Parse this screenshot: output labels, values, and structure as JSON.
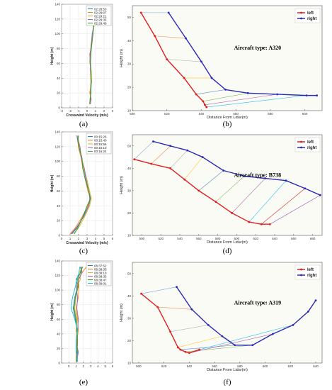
{
  "chart_data": [
    {
      "id": "a",
      "type": "line",
      "orientation": "vertical-profile",
      "panel_label": "(a)",
      "xlabel": "Crosswind Velocity (m/s)",
      "ylabel": "Height (m)",
      "xlim": [
        -3,
        3
      ],
      "ylim": [
        0,
        140
      ],
      "xticks": [
        -3,
        -2,
        -1,
        0,
        1,
        2,
        3
      ],
      "yticks": [
        0,
        20,
        40,
        60,
        80,
        100,
        120,
        140
      ],
      "grid": true,
      "legend_position": "top-right",
      "series": [
        {
          "name": "02:28:53",
          "color": "#1f77b4",
          "x": [
            0.35,
            0.4,
            0.45,
            0.5,
            0.45,
            0.35,
            0.35,
            0.5,
            0.65,
            0.8,
            0.9,
            0.85,
            0.8
          ],
          "y": [
            5,
            12,
            20,
            35,
            50,
            62,
            72,
            85,
            100,
            112,
            122,
            130,
            135
          ]
        },
        {
          "name": "02:29:07",
          "color": "#ff7f0e",
          "x": [
            0.3,
            0.45,
            0.35,
            0.45,
            0.4,
            0.4,
            0.3,
            0.55,
            0.7,
            0.75,
            0.95,
            0.8,
            0.85
          ],
          "y": [
            5,
            12,
            20,
            35,
            50,
            62,
            72,
            85,
            100,
            112,
            122,
            130,
            135
          ]
        },
        {
          "name": "02:29:21",
          "color": "#d8b020",
          "x": [
            0.35,
            0.5,
            0.3,
            0.55,
            0.5,
            0.3,
            0.4,
            0.45,
            0.65,
            0.85,
            0.85,
            0.9,
            0.75
          ],
          "y": [
            5,
            12,
            20,
            35,
            50,
            62,
            72,
            85,
            100,
            112,
            122,
            130,
            135
          ]
        },
        {
          "name": "02:29:35",
          "color": "#9467bd",
          "x": [
            0.4,
            0.45,
            0.4,
            0.5,
            0.4,
            0.35,
            0.35,
            0.5,
            0.6,
            0.8,
            0.9,
            0.8,
            0.9
          ],
          "y": [
            5,
            12,
            20,
            35,
            50,
            62,
            72,
            85,
            100,
            112,
            122,
            130,
            135
          ]
        },
        {
          "name": "02:29:49",
          "color": "#2ca02c",
          "x": [
            0.3,
            0.35,
            0.45,
            0.45,
            0.45,
            0.4,
            0.45,
            0.55,
            0.7,
            0.8,
            0.8,
            0.85,
            0.8
          ],
          "y": [
            5,
            12,
            20,
            35,
            50,
            62,
            72,
            85,
            100,
            112,
            122,
            130,
            135
          ]
        }
      ]
    },
    {
      "id": "b",
      "type": "line",
      "panel_label": "(b)",
      "annotation": "Aircraft type: A320",
      "xlabel": "Distance From Lidar(m)",
      "ylabel": "Height (m)",
      "xlim": [
        500,
        610
      ],
      "ylim": [
        10,
        55
      ],
      "xticks": [
        500,
        520,
        540,
        560,
        580,
        600
      ],
      "yticks": [
        10,
        20,
        30,
        40,
        50
      ],
      "grid": false,
      "legend_position": "top-right",
      "series": [
        {
          "name": "left",
          "color": "#dd1f1f",
          "x": [
            505,
            513,
            520,
            530,
            537,
            541,
            542,
            543
          ],
          "y": [
            52,
            42,
            32,
            24,
            17,
            14,
            12.5,
            11.5
          ]
        },
        {
          "name": "right",
          "color": "#2a2ab8",
          "x": [
            521,
            531,
            540,
            546,
            554,
            567,
            584,
            601,
            607
          ],
          "y": [
            52,
            41,
            31,
            24,
            19,
            17.5,
            17,
            16.5,
            16.5
          ]
        }
      ]
    },
    {
      "id": "c",
      "type": "line",
      "orientation": "vertical-profile",
      "panel_label": "(c)",
      "xlabel": "Crosswind Velocity (m/s)",
      "ylabel": "Height (m)",
      "xlim": [
        0,
        6
      ],
      "ylim": [
        0,
        140
      ],
      "xticks": [
        0,
        1,
        2,
        3,
        4,
        5,
        6
      ],
      "yticks": [
        0,
        20,
        40,
        60,
        80,
        100,
        120,
        140
      ],
      "grid": true,
      "legend_position": "top-right",
      "series": [
        {
          "name": "00:15:26",
          "color": "#1f77b4",
          "x": [
            1.2,
            1.8,
            2.5,
            3.2,
            3.4,
            3.2,
            2.9,
            2.6,
            2.3,
            2.1,
            1.9,
            1.8
          ],
          "y": [
            2,
            10,
            25,
            40,
            50,
            60,
            75,
            90,
            105,
            118,
            128,
            135
          ]
        },
        {
          "name": "00:15:40",
          "color": "#ff7f0e",
          "x": [
            1.0,
            1.6,
            2.4,
            3.1,
            3.4,
            3.1,
            2.8,
            2.5,
            2.3,
            2.0,
            1.9,
            2.0
          ],
          "y": [
            2,
            10,
            25,
            40,
            50,
            60,
            75,
            90,
            105,
            118,
            128,
            135
          ]
        },
        {
          "name": "00:15:56",
          "color": "#d8b020",
          "x": [
            1.4,
            2.0,
            2.7,
            3.3,
            3.5,
            3.3,
            3.0,
            2.6,
            2.4,
            2.1,
            2.0,
            1.9
          ],
          "y": [
            2,
            10,
            25,
            40,
            50,
            60,
            75,
            90,
            105,
            118,
            128,
            135
          ]
        },
        {
          "name": "00:16:10",
          "color": "#9467bd",
          "x": [
            1.1,
            1.7,
            2.6,
            3.2,
            3.3,
            3.2,
            2.9,
            2.7,
            2.3,
            2.2,
            2.0,
            1.8
          ],
          "y": [
            2,
            10,
            25,
            40,
            50,
            60,
            75,
            90,
            105,
            118,
            128,
            135
          ]
        },
        {
          "name": "00:16:24",
          "color": "#2ca02c",
          "x": [
            1.5,
            1.9,
            2.5,
            3.0,
            3.4,
            3.2,
            2.8,
            2.5,
            2.4,
            2.1,
            1.9,
            2.0
          ],
          "y": [
            2,
            10,
            25,
            40,
            50,
            60,
            75,
            90,
            105,
            118,
            128,
            135
          ]
        }
      ]
    },
    {
      "id": "d",
      "type": "line",
      "panel_label": "(d)",
      "annotation": "Aircraft type: B738",
      "xlabel": "Distance From Lidar(m)",
      "ylabel": "Height (m)",
      "xlim": [
        490,
        690
      ],
      "ylim": [
        10,
        55
      ],
      "xticks": [
        500,
        520,
        540,
        560,
        580,
        600,
        620,
        640,
        660,
        680
      ],
      "yticks": [
        10,
        20,
        30,
        40,
        50
      ],
      "grid": false,
      "legend_position": "top-right",
      "series": [
        {
          "name": "left",
          "color": "#dd1f1f",
          "x": [
            492,
            510,
            530,
            545,
            560,
            578,
            595,
            613,
            626,
            635
          ],
          "y": [
            44,
            42,
            40,
            35,
            30,
            25,
            20,
            16,
            15,
            15
          ]
        },
        {
          "name": "right",
          "color": "#2a2ab8",
          "x": [
            512,
            530,
            548,
            564,
            586,
            608,
            630,
            652,
            672,
            688
          ],
          "y": [
            52,
            50,
            48,
            45,
            39,
            36.5,
            35.5,
            34.5,
            31,
            28
          ]
        }
      ]
    },
    {
      "id": "e",
      "type": "line",
      "orientation": "vertical-profile",
      "panel_label": "(e)",
      "xlabel": "",
      "ylabel": "Height (m)",
      "xlim": [
        -1,
        6
      ],
      "ylim": [
        0,
        140
      ],
      "xticks": [
        0,
        1,
        2,
        3,
        4,
        5,
        6
      ],
      "yticks": [
        0,
        20,
        40,
        60,
        80,
        100,
        120,
        140
      ],
      "grid": true,
      "legend_position": "top-right",
      "series": [
        {
          "name": "08:37:52",
          "color": "#1f77b4",
          "x": [
            1.1,
            1.2,
            1.0,
            1.1,
            0.9,
            0.6,
            0.8,
            1.2,
            1.0,
            1.7,
            1.6
          ],
          "y": [
            2,
            15,
            30,
            45,
            60,
            75,
            90,
            105,
            115,
            125,
            132
          ]
        },
        {
          "name": "08:38:05",
          "color": "#ff7f0e",
          "x": [
            1.0,
            1.0,
            1.1,
            1.3,
            1.2,
            1.0,
            1.3,
            1.4,
            1.3,
            1.9,
            2.4
          ],
          "y": [
            2,
            15,
            30,
            45,
            60,
            75,
            90,
            105,
            115,
            125,
            132
          ]
        },
        {
          "name": "08:38:19",
          "color": "#d8b020",
          "x": [
            1.2,
            1.1,
            1.2,
            1.0,
            1.1,
            0.8,
            1.0,
            1.1,
            1.6,
            1.5,
            1.8
          ],
          "y": [
            2,
            15,
            30,
            45,
            60,
            75,
            90,
            105,
            115,
            125,
            132
          ]
        },
        {
          "name": "08:38:33",
          "color": "#9467bd",
          "x": [
            1.1,
            1.3,
            1.0,
            1.2,
            1.3,
            1.1,
            1.2,
            1.0,
            1.4,
            1.8,
            1.7
          ],
          "y": [
            2,
            15,
            30,
            45,
            60,
            75,
            90,
            105,
            115,
            125,
            132
          ]
        },
        {
          "name": "08:38:47",
          "color": "#2ca02c",
          "x": [
            1.0,
            1.1,
            1.2,
            1.1,
            1.0,
            0.7,
            0.9,
            1.3,
            1.2,
            1.6,
            1.9
          ],
          "y": [
            2,
            15,
            30,
            45,
            60,
            75,
            90,
            105,
            115,
            125,
            132
          ]
        },
        {
          "name": "08:39:01",
          "color": "#17becf",
          "x": [
            1.2,
            1.0,
            1.0,
            1.2,
            0.8,
            0.3,
            0.5,
            0.9,
            1.1,
            1.4,
            1.5
          ],
          "y": [
            2,
            15,
            30,
            45,
            60,
            75,
            90,
            105,
            115,
            125,
            132
          ]
        }
      ]
    },
    {
      "id": "f",
      "type": "line",
      "panel_label": "(f)",
      "annotation": "Aircraft type: A319",
      "xlabel": "Distance From Lidar(m)",
      "ylabel": "Height (m)",
      "xlim": [
        495,
        645
      ],
      "ylim": [
        10,
        55
      ],
      "xticks": [
        500,
        520,
        540,
        560,
        580,
        600,
        620,
        640
      ],
      "yticks": [
        10,
        20,
        30,
        40,
        50
      ],
      "grid": false,
      "legend_position": "top-right",
      "series": [
        {
          "name": "left",
          "color": "#dd1f1f",
          "x": [
            502,
            515,
            525,
            531,
            533,
            537,
            540,
            548
          ],
          "y": [
            41,
            35,
            24,
            17,
            16,
            15,
            14.5,
            16
          ]
        },
        {
          "name": "right",
          "color": "#2a2ab8",
          "x": [
            530,
            542,
            555,
            566,
            576,
            590,
            606,
            622,
            634,
            640
          ],
          "y": [
            44,
            34,
            27,
            22,
            18,
            18,
            23,
            27,
            33,
            38
          ]
        }
      ]
    }
  ]
}
